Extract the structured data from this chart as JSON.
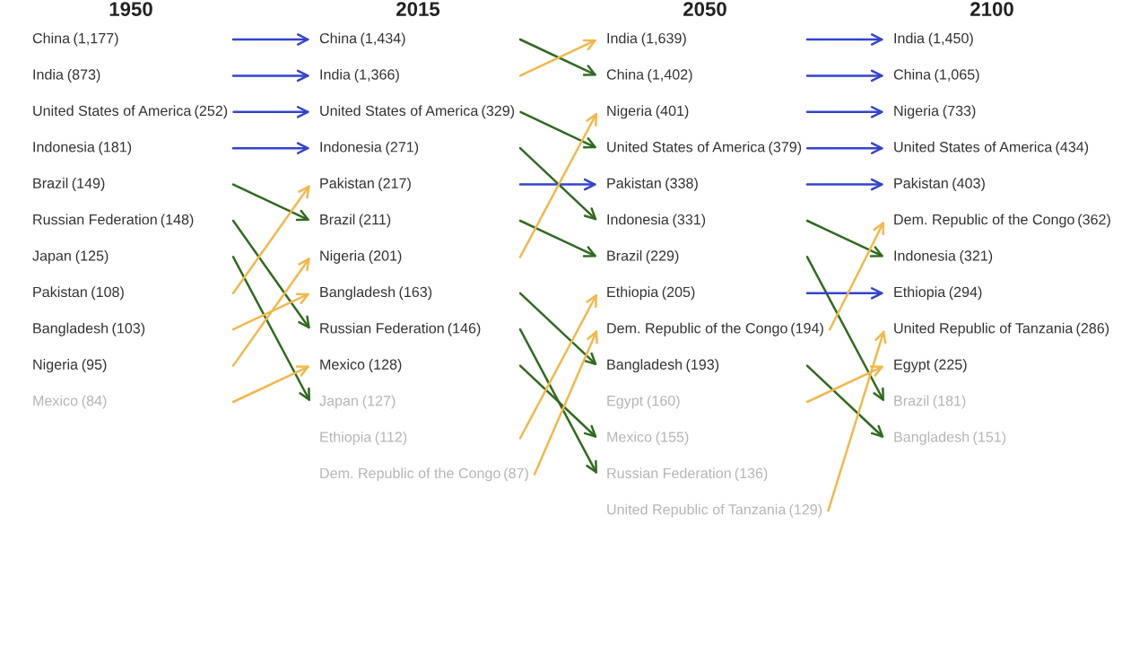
{
  "chart_data": {
    "type": "other",
    "data_labels": true,
    "categories": [
      "1950",
      "2015",
      "2050",
      "2100"
    ],
    "series": [
      {
        "name": "China",
        "values": [
          1177,
          1434,
          1402,
          1065
        ],
        "value_labels": [
          "(1,177)",
          "(1,434)",
          "(1,402)",
          "(1,065)"
        ]
      },
      {
        "name": "India",
        "values": [
          873,
          1366,
          1639,
          1450
        ],
        "value_labels": [
          "(873)",
          "(1,366)",
          "(1,639)",
          "(1,450)"
        ]
      },
      {
        "name": "United States of America",
        "values": [
          252,
          329,
          379,
          434
        ],
        "value_labels": [
          "(252)",
          "(329)",
          "(379)",
          "(434)"
        ]
      },
      {
        "name": "Indonesia",
        "values": [
          181,
          271,
          331,
          321
        ],
        "value_labels": [
          "(181)",
          "(271)",
          "(331)",
          "(321)"
        ]
      },
      {
        "name": "Brazil",
        "values": [
          149,
          211,
          229,
          181
        ],
        "value_labels": [
          "(149)",
          "(211)",
          "(229)",
          "(181)"
        ]
      },
      {
        "name": "Russian Federation",
        "values": [
          148,
          146,
          136,
          null
        ],
        "value_labels": [
          "(148)",
          "(146)",
          "(136)",
          null
        ]
      },
      {
        "name": "Japan",
        "values": [
          125,
          127,
          null,
          null
        ],
        "value_labels": [
          "(125)",
          "(127)",
          null,
          null
        ]
      },
      {
        "name": "Pakistan",
        "values": [
          108,
          217,
          338,
          403
        ],
        "value_labels": [
          "(108)",
          "(217)",
          "(338)",
          "(403)"
        ]
      },
      {
        "name": "Bangladesh",
        "values": [
          103,
          163,
          193,
          151
        ],
        "value_labels": [
          "(103)",
          "(163)",
          "(193)",
          "(151)"
        ]
      },
      {
        "name": "Nigeria",
        "values": [
          95,
          201,
          401,
          733
        ],
        "value_labels": [
          "(95)",
          "(201)",
          "(401)",
          "(733)"
        ]
      },
      {
        "name": "Mexico",
        "values": [
          84,
          128,
          155,
          null
        ],
        "value_labels": [
          "(84)",
          "(128)",
          "(155)",
          null
        ]
      },
      {
        "name": "Ethiopia",
        "values": [
          null,
          112,
          205,
          294
        ],
        "value_labels": [
          null,
          "(112)",
          "(205)",
          "(294)"
        ]
      },
      {
        "name": "Dem. Republic of the Congo",
        "values": [
          null,
          87,
          194,
          362
        ],
        "value_labels": [
          null,
          "(87)",
          "(194)",
          "(362)"
        ]
      },
      {
        "name": "Egypt",
        "values": [
          null,
          null,
          160,
          225
        ],
        "value_labels": [
          null,
          null,
          "(160)",
          "(225)"
        ]
      },
      {
        "name": "United Republic of Tanzania",
        "values": [
          null,
          null,
          129,
          286
        ],
        "value_labels": [
          null,
          null,
          "(129)",
          "(286)"
        ]
      }
    ]
  }
}
